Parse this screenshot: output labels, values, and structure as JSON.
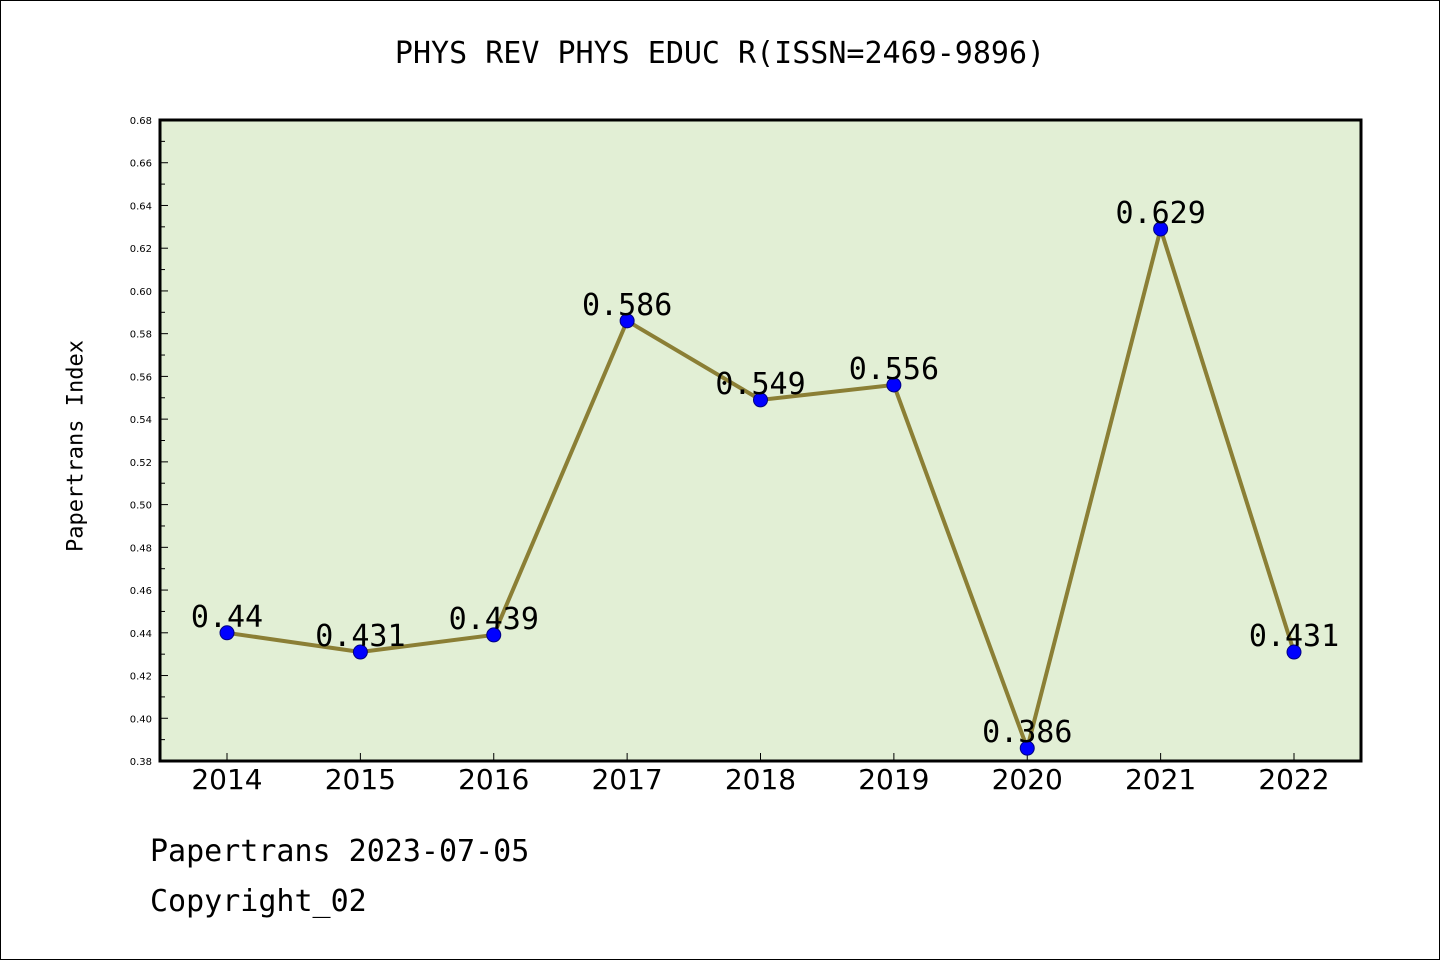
{
  "chart_data": {
    "type": "line",
    "title": "PHYS REV PHYS EDUC R(ISSN=2469-9896)",
    "xlabel": "",
    "ylabel": "Papertrans Index",
    "categories": [
      "2014",
      "2015",
      "2016",
      "2017",
      "2018",
      "2019",
      "2020",
      "2021",
      "2022"
    ],
    "series": [
      {
        "values": [
          0.44,
          0.431,
          0.439,
          0.586,
          0.549,
          0.556,
          0.386,
          0.629,
          0.431
        ],
        "labels": [
          "0.44",
          "0.431",
          "0.439",
          "0.586",
          "0.549",
          "0.556",
          "0.386",
          "0.629",
          "0.431"
        ]
      }
    ],
    "ylim": [
      0.38,
      0.68
    ],
    "yticks": [
      "0.38",
      "0.40",
      "0.42",
      "0.44",
      "0.46",
      "0.48",
      "0.50",
      "0.52",
      "0.54",
      "0.56",
      "0.58",
      "0.60",
      "0.62",
      "0.64",
      "0.66",
      "0.68"
    ],
    "grid": false,
    "legend": "none"
  },
  "footer": {
    "line1": "Papertrans 2023-07-05",
    "line2": "Copyright_02"
  },
  "colors": {
    "plot_background": "#e2efd5",
    "line": "#8b7f35",
    "marker": "#0000ff",
    "axis": "#000000"
  }
}
